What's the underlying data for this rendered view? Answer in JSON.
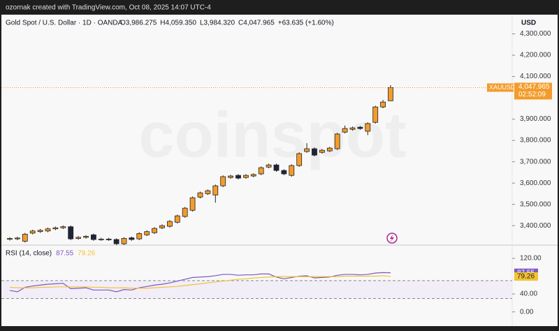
{
  "attribution": "ozornak created with TradingView.com, Oct 08, 2025 14:07 UTC-4",
  "chart_data": [
    {
      "type": "candlestick",
      "title": "Gold Spot / U.S. Dollar · 1D · OANDA",
      "last_labels": [
        "O3,986.275",
        "H4,059.350",
        "L3,984.320",
        "C4,047.965"
      ],
      "change_label": "+63.635 (+1.60%)",
      "currency": "USD",
      "symbol": "XAUUSD",
      "last_price_label": "4,047.965",
      "countdown": "02:52:09",
      "watermark": "coinspot",
      "up_color": "#f39c2b",
      "down_color": "#1f2438",
      "last_color": "#f39c2b",
      "open": [
        3336,
        3338,
        3327,
        3365,
        3372,
        3375,
        3385,
        3390,
        3395,
        3340,
        3345,
        3357,
        3335,
        3337,
        3335,
        3315,
        3343,
        3338,
        3357,
        3367,
        3390,
        3397,
        3416,
        3443,
        3472,
        3534,
        3550,
        3544,
        3587,
        3626,
        3636,
        3626,
        3633,
        3643,
        3675,
        3685,
        3659,
        3636,
        3682,
        3748,
        3761,
        3744,
        3751,
        3761,
        3839,
        3852,
        3862,
        3843,
        3885,
        3957,
        3986.275
      ],
      "high": [
        3346,
        3348,
        3366,
        3381,
        3384,
        3391,
        3396,
        3401,
        3401,
        3351,
        3356,
        3363,
        3343,
        3343,
        3341,
        3346,
        3349,
        3369,
        3378,
        3393,
        3406,
        3426,
        3452,
        3488,
        3537,
        3560,
        3570,
        3593,
        3636,
        3639,
        3642,
        3642,
        3646,
        3678,
        3691,
        3691,
        3665,
        3688,
        3744,
        3787,
        3767,
        3760,
        3770,
        3836,
        3870,
        3865,
        3868,
        3885,
        3963,
        3990,
        4059.35
      ],
      "low": [
        3330,
        3332,
        3321,
        3359,
        3366,
        3369,
        3379,
        3384,
        3332,
        3334,
        3339,
        3329,
        3329,
        3329,
        3309,
        3309,
        3329,
        3332,
        3351,
        3361,
        3384,
        3391,
        3410,
        3437,
        3466,
        3528,
        3544,
        3508,
        3581,
        3620,
        3617,
        3620,
        3627,
        3637,
        3669,
        3653,
        3637,
        3630,
        3676,
        3742,
        3725,
        3738,
        3745,
        3755,
        3833,
        3846,
        3850,
        3825,
        3879,
        3951,
        3984.32
      ],
      "close": [
        3340,
        3342,
        3360,
        3375,
        3378,
        3385,
        3390,
        3395,
        3338,
        3345,
        3350,
        3335,
        3337,
        3335,
        3315,
        3340,
        3335,
        3363,
        3372,
        3387,
        3400,
        3420,
        3446,
        3482,
        3531,
        3554,
        3564,
        3587,
        3630,
        3633,
        3623,
        3636,
        3640,
        3672,
        3685,
        3659,
        3643,
        3682,
        3738,
        3761,
        3731,
        3754,
        3764,
        3830,
        3856,
        3859,
        3856,
        3879,
        3957,
        3980,
        4047.965
      ],
      "ylim": [
        3312,
        4387
      ],
      "yticks": [
        {
          "value": 3400,
          "label": "3,400.000"
        },
        {
          "value": 3500,
          "label": "3,500.000"
        },
        {
          "value": 3600,
          "label": "3,600.000"
        },
        {
          "value": 3700,
          "label": "3,700.000"
        },
        {
          "value": 3800,
          "label": "3,800.000"
        },
        {
          "value": 3900,
          "label": "3,900.000"
        },
        {
          "value": 4100,
          "label": "4,100.000"
        },
        {
          "value": 4200,
          "label": "4,200.000"
        },
        {
          "value": 4300,
          "label": "4,300.000"
        }
      ]
    },
    {
      "type": "line",
      "title": "RSI (14, close)",
      "series": [
        {
          "color": "#7e57c2",
          "values": [
            48,
            45,
            55,
            58,
            60,
            62,
            63,
            64,
            52,
            53,
            54,
            49,
            49,
            49,
            45,
            50,
            49,
            54,
            57,
            60,
            62,
            65,
            69,
            73,
            77,
            78,
            79,
            81,
            84,
            84,
            82,
            83,
            83,
            85,
            85,
            78,
            74,
            77,
            80,
            81,
            76,
            77,
            78,
            82,
            84,
            84,
            83,
            84,
            87,
            88,
            87.55
          ]
        },
        {
          "color": "#f2c233",
          "values": [
            55,
            54,
            54,
            54,
            55,
            55,
            56,
            56,
            56,
            56,
            56,
            55,
            55,
            54,
            54,
            54,
            53,
            53,
            53,
            54,
            55,
            56,
            57,
            59,
            61,
            63,
            65,
            67,
            69,
            71,
            73,
            74,
            76,
            77,
            78,
            79,
            79,
            79,
            79,
            79,
            79,
            79,
            79,
            79,
            80,
            80,
            80,
            80,
            80,
            81,
            79.26
          ]
        }
      ],
      "bands": [
        30,
        70
      ],
      "ylim": [
        -35,
        148
      ],
      "yticks": [
        {
          "value": 0,
          "label": "0.00"
        },
        {
          "value": 40,
          "label": "40.00"
        },
        {
          "value": 120,
          "label": "120.00"
        }
      ]
    }
  ]
}
